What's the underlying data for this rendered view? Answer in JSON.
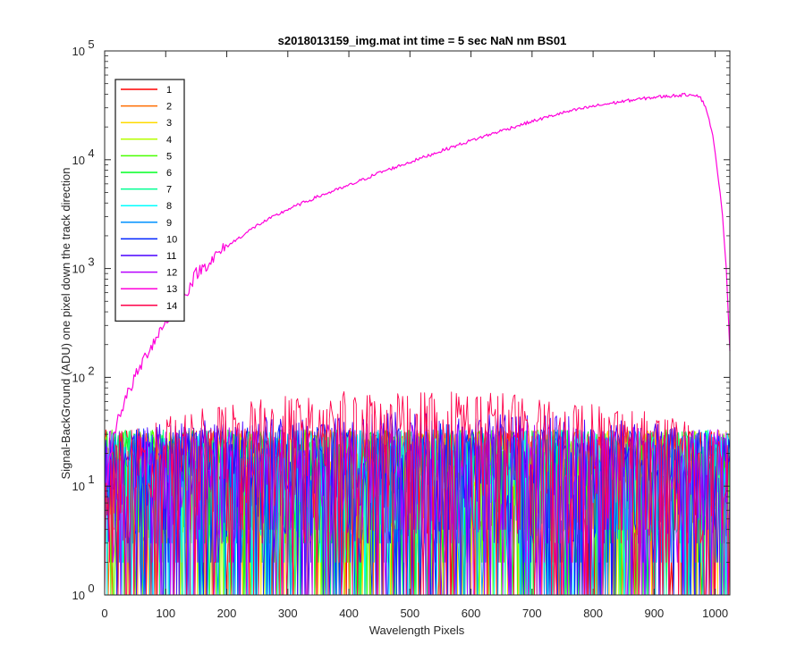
{
  "chart_data": {
    "type": "line",
    "title": "s2018013159_img.mat int time = 5 sec  NaN nm BS01",
    "xlabel": "Wavelength Pixels",
    "ylabel": "Signal-BackGround (ADU) one pixel down the track direction",
    "xlim": [
      0,
      1024
    ],
    "ylim": [
      1,
      100000
    ],
    "yscale": "log",
    "xticks": [
      0,
      100,
      200,
      300,
      400,
      500,
      600,
      700,
      800,
      900,
      1000
    ],
    "xtick_labels": [
      "0",
      "100",
      "200",
      "300",
      "400",
      "500",
      "600",
      "700",
      "800",
      "900",
      "1000"
    ],
    "yticks": [
      1,
      10,
      100,
      1000,
      10000,
      100000
    ],
    "ytick_labels": [
      {
        "base": "10",
        "exp": "0"
      },
      {
        "base": "10",
        "exp": "1"
      },
      {
        "base": "10",
        "exp": "2"
      },
      {
        "base": "10",
        "exp": "3"
      },
      {
        "base": "10",
        "exp": "4"
      },
      {
        "base": "10",
        "exp": "5"
      }
    ],
    "grid": false,
    "legend_location": "top-left",
    "series": [
      {
        "name": "1",
        "color": "#ff0000",
        "kind": "noise",
        "noise_max": [
          30,
          30
        ],
        "visible": true
      },
      {
        "name": "2",
        "color": "#ff6e00",
        "kind": "noise",
        "noise_max": [
          30,
          30
        ],
        "visible": true
      },
      {
        "name": "3",
        "color": "#ffdb00",
        "kind": "noise",
        "noise_max": [
          30,
          30
        ],
        "visible": true
      },
      {
        "name": "4",
        "color": "#b6ff00",
        "kind": "noise",
        "noise_max": [
          30,
          30
        ],
        "visible": true
      },
      {
        "name": "5",
        "color": "#49ff00",
        "kind": "noise",
        "noise_max": [
          30,
          30
        ],
        "visible": true
      },
      {
        "name": "6",
        "color": "#00ff24",
        "kind": "noise",
        "noise_max": [
          30,
          30
        ],
        "visible": true
      },
      {
        "name": "7",
        "color": "#00ff92",
        "kind": "noise",
        "noise_max": [
          30,
          30
        ],
        "visible": true
      },
      {
        "name": "8",
        "color": "#00ffff",
        "kind": "noise",
        "noise_max": [
          30,
          30
        ],
        "visible": true
      },
      {
        "name": "9",
        "color": "#0092ff",
        "kind": "noise",
        "noise_max": [
          30,
          30
        ],
        "visible": true
      },
      {
        "name": "10",
        "color": "#0024ff",
        "kind": "noise",
        "noise_max": [
          30,
          35
        ],
        "visible": true
      },
      {
        "name": "11",
        "color": "#4900ff",
        "kind": "noise",
        "noise_max": [
          30,
          45
        ],
        "visible": true
      },
      {
        "name": "12",
        "color": "#b600ff",
        "kind": "noise",
        "noise_max": [
          30,
          35
        ],
        "visible": true
      },
      {
        "name": "13",
        "color": "#ff00db",
        "kind": "signal",
        "visible": true,
        "points": [
          [
            0,
            8
          ],
          [
            10,
            20
          ],
          [
            20,
            40
          ],
          [
            30,
            55
          ],
          [
            40,
            75
          ],
          [
            50,
            100
          ],
          [
            70,
            170
          ],
          [
            100,
            330
          ],
          [
            130,
            550
          ],
          [
            150,
            900
          ],
          [
            200,
            1600
          ],
          [
            250,
            2500
          ],
          [
            300,
            3500
          ],
          [
            350,
            4600
          ],
          [
            400,
            5800
          ],
          [
            450,
            7600
          ],
          [
            500,
            9500
          ],
          [
            550,
            12000
          ],
          [
            600,
            15000
          ],
          [
            650,
            18500
          ],
          [
            700,
            22500
          ],
          [
            750,
            27000
          ],
          [
            800,
            31000
          ],
          [
            850,
            34500
          ],
          [
            900,
            37500
          ],
          [
            950,
            39500
          ],
          [
            965,
            40000
          ],
          [
            975,
            38000
          ],
          [
            985,
            30000
          ],
          [
            995,
            18000
          ],
          [
            1005,
            7000
          ],
          [
            1012,
            3000
          ],
          [
            1018,
            1000
          ],
          [
            1024,
            180
          ]
        ]
      },
      {
        "name": "14",
        "color": "#ff0049",
        "kind": "noise",
        "noise_max": [
          25,
          75
        ],
        "visible": true
      }
    ]
  }
}
